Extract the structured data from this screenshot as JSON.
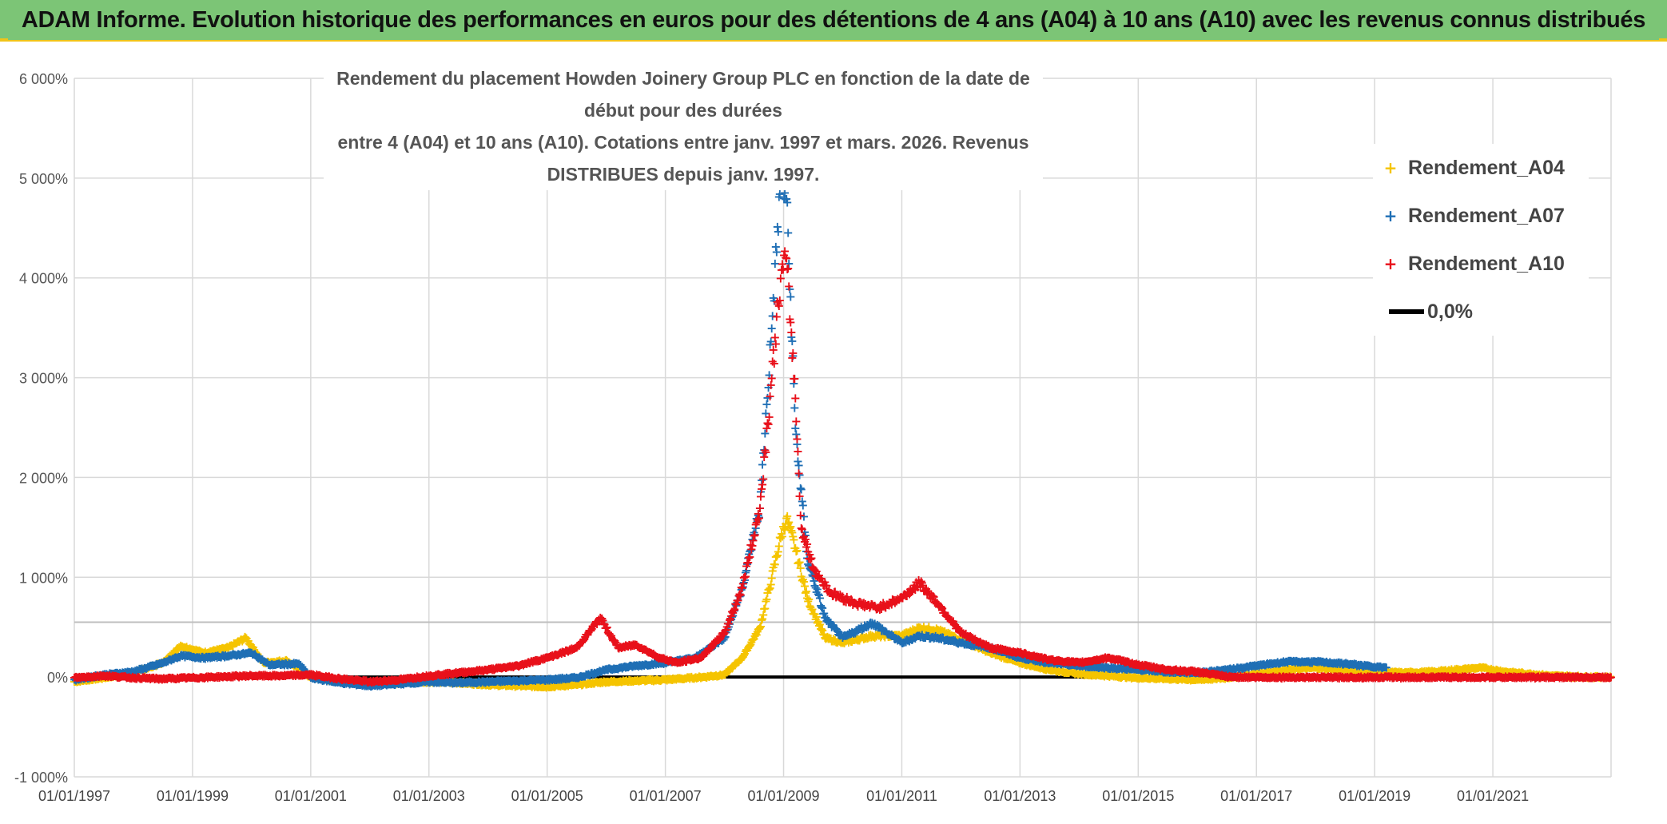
{
  "header": {
    "banner_title": "ADAM Informe. Evolution historique des performances en euros pour des détentions de 4 ans (A04) à 10 ans (A10) avec les revenus connus distribués"
  },
  "colors": {
    "banner_bg": "#7cc576",
    "a04": "#f5c400",
    "a07": "#1f6fb5",
    "a10": "#e8101a",
    "zero": "#000000",
    "grid": "#d9d9d9"
  },
  "chart_data": {
    "type": "scatter",
    "title_line1": "Rendement du placement Howden Joinery Group PLC en fonction de la date de début pour des durées",
    "title_line2": "entre 4 (A04) et 10 ans (A10). Cotations entre janv. 1997 et mars. 2026. Revenus DISTRIBUES depuis janv. 1997.",
    "x_range": [
      1997.0,
      2023.0
    ],
    "ylim": [
      -1000,
      6000
    ],
    "y_ticks": [
      -1000,
      0,
      1000,
      2000,
      3000,
      4000,
      5000,
      6000
    ],
    "y_tick_labels": [
      "-1 000%",
      "0%",
      "1 000%",
      "2 000%",
      "3 000%",
      "4 000%",
      "5 000%",
      "6 000%"
    ],
    "x_ticks": [
      1997,
      1999,
      2001,
      2003,
      2005,
      2007,
      2009,
      2011,
      2013,
      2015,
      2017,
      2019,
      2021
    ],
    "x_tick_labels": [
      "01/01/1997",
      "01/01/1999",
      "01/01/2001",
      "01/01/2003",
      "01/01/2005",
      "01/01/2007",
      "01/01/2009",
      "01/01/2011",
      "01/01/2013",
      "01/01/2015",
      "01/01/2017",
      "01/01/2019",
      "01/01/2021"
    ],
    "reference_line_y": 550,
    "legend_position": "top-right",
    "series": [
      {
        "name": "Rendement_A04",
        "color": "#f5c400",
        "x": [
          1997.0,
          1997.5,
          1998.0,
          1998.5,
          1998.8,
          1999.2,
          1999.6,
          1999.9,
          2000.2,
          2000.6,
          2001.0,
          2001.5,
          2002.0,
          2002.5,
          2003.0,
          2003.5,
          2004.0,
          2004.5,
          2005.0,
          2005.5,
          2006.0,
          2006.5,
          2007.0,
          2007.5,
          2008.0,
          2008.3,
          2008.6,
          2008.8,
          2008.95,
          2009.05,
          2009.2,
          2009.4,
          2009.7,
          2010.0,
          2010.5,
          2011.0,
          2011.3,
          2011.6,
          2012.0,
          2012.5,
          2013.0,
          2013.5,
          2014.0,
          2014.5,
          2015.0,
          2015.5,
          2016.0,
          2016.5,
          2017.0,
          2017.5,
          2018.0,
          2018.5,
          2019.0,
          2019.5,
          2020.0,
          2020.4,
          2020.8,
          2021.2,
          2021.6,
          2022.0,
          2022.5,
          2023.0
        ],
        "y": [
          -40,
          0,
          50,
          150,
          320,
          250,
          300,
          400,
          150,
          170,
          0,
          -30,
          -60,
          -50,
          -40,
          -50,
          -70,
          -80,
          -90,
          -70,
          -40,
          -30,
          -20,
          0,
          30,
          200,
          500,
          1000,
          1400,
          1600,
          1300,
          800,
          400,
          350,
          420,
          420,
          500,
          480,
          380,
          250,
          150,
          80,
          40,
          20,
          0,
          -10,
          -20,
          0,
          40,
          80,
          100,
          80,
          60,
          50,
          60,
          80,
          100,
          60,
          40,
          20,
          10,
          5
        ]
      },
      {
        "name": "Rendement_A07",
        "color": "#1f6fb5",
        "x": [
          1997.0,
          1997.5,
          1998.0,
          1998.5,
          1998.8,
          1999.2,
          1999.6,
          2000.0,
          2000.3,
          2000.8,
          2001.0,
          2001.5,
          2002.0,
          2002.5,
          2003.0,
          2003.5,
          2004.0,
          2004.5,
          2005.0,
          2005.5,
          2006.0,
          2006.5,
          2007.0,
          2007.5,
          2008.0,
          2008.3,
          2008.6,
          2008.8,
          2008.95,
          2009.05,
          2009.2,
          2009.4,
          2009.7,
          2010.0,
          2010.5,
          2011.0,
          2011.3,
          2011.6,
          2012.0,
          2012.5,
          2013.0,
          2013.5,
          2014.0,
          2014.5,
          2015.0,
          2015.5,
          2016.0,
          2016.5,
          2017.0,
          2017.5,
          2018.0,
          2018.5,
          2019.0,
          2019.2
        ],
        "y": [
          -20,
          30,
          60,
          150,
          220,
          200,
          220,
          250,
          130,
          140,
          0,
          -50,
          -80,
          -60,
          -40,
          -50,
          -40,
          -30,
          -20,
          0,
          80,
          120,
          150,
          200,
          400,
          900,
          1700,
          3500,
          5000,
          4800,
          2500,
          1200,
          600,
          400,
          550,
          350,
          420,
          400,
          350,
          300,
          200,
          150,
          120,
          100,
          80,
          60,
          50,
          80,
          120,
          160,
          160,
          140,
          110,
          100
        ]
      },
      {
        "name": "Rendement_A10",
        "color": "#e8101a",
        "x": [
          1997.0,
          1997.5,
          1998.0,
          1998.5,
          1999.0,
          1999.5,
          2000.0,
          2000.5,
          2001.0,
          2001.5,
          2002.0,
          2002.5,
          2003.0,
          2003.5,
          2004.0,
          2004.5,
          2005.0,
          2005.5,
          2005.9,
          2006.2,
          2006.5,
          2006.9,
          2007.2,
          2007.6,
          2008.0,
          2008.3,
          2008.6,
          2008.8,
          2008.95,
          2009.05,
          2009.2,
          2009.3,
          2009.5,
          2009.8,
          2010.2,
          2010.6,
          2011.0,
          2011.3,
          2011.6,
          2012.0,
          2012.5,
          2013.0,
          2013.5,
          2014.0,
          2014.5,
          2015.0,
          2015.5,
          2016.0,
          2016.5,
          2017.0,
          2017.5,
          2018.0,
          2018.5,
          2019.0,
          2019.5,
          2020.0,
          2020.5,
          2021.0,
          2021.5,
          2022.0,
          2022.5,
          2023.0
        ],
        "y": [
          0,
          20,
          0,
          -10,
          0,
          10,
          20,
          20,
          30,
          -10,
          -40,
          -20,
          20,
          50,
          80,
          120,
          200,
          300,
          600,
          300,
          330,
          200,
          150,
          200,
          450,
          900,
          1700,
          3000,
          4000,
          4200,
          2800,
          1500,
          1100,
          850,
          750,
          700,
          800,
          950,
          750,
          450,
          300,
          250,
          180,
          150,
          200,
          130,
          80,
          60,
          10,
          5,
          5,
          5,
          5,
          5,
          5,
          5,
          5,
          5,
          5,
          5,
          5,
          5
        ]
      }
    ],
    "zero_line": {
      "name": "0,0%",
      "y": 0
    }
  },
  "legend": {
    "items": [
      {
        "marker": "+",
        "label": "Rendement_A04"
      },
      {
        "marker": "+",
        "label": "Rendement_A07"
      },
      {
        "marker": "+",
        "label": "Rendement_A10"
      },
      {
        "marker": "line",
        "label": "0,0%"
      }
    ]
  }
}
